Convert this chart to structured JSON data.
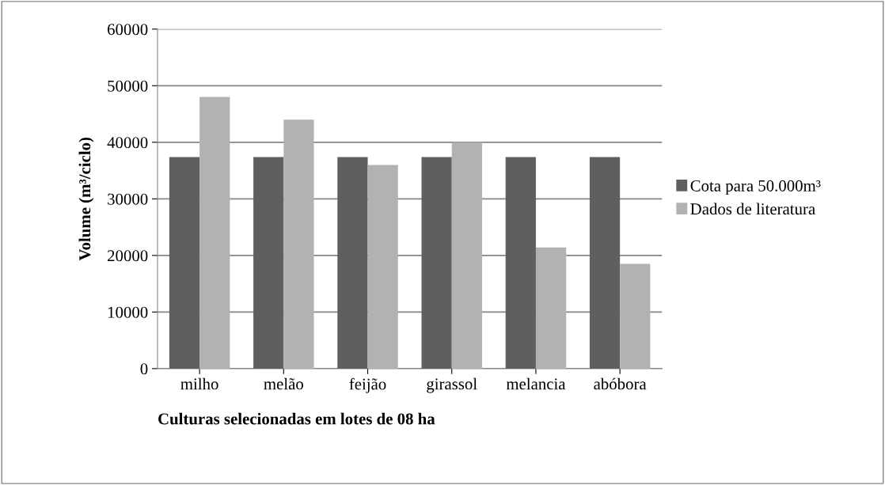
{
  "chart_data": {
    "type": "bar",
    "xlabel": "Culturas selecionadas em lotes de 08 ha",
    "ylabel": "Volume (m³/ciclo)",
    "categories": [
      "milho",
      "melão",
      "feijão",
      "girassol",
      "melancia",
      "abóbora"
    ],
    "series": [
      {
        "name": "Cota para 50.000m³",
        "color": "#5f5f5f",
        "values": [
          37400,
          37400,
          37400,
          37400,
          37400,
          37400
        ]
      },
      {
        "name": "Dados de literatura",
        "color": "#b2b2b2",
        "values": [
          48000,
          44000,
          36000,
          40000,
          21400,
          18500
        ]
      }
    ],
    "ylim": [
      0,
      60000
    ],
    "yticks": [
      0,
      10000,
      20000,
      30000,
      40000,
      50000,
      60000
    ],
    "grid": "y",
    "legend": "right"
  }
}
